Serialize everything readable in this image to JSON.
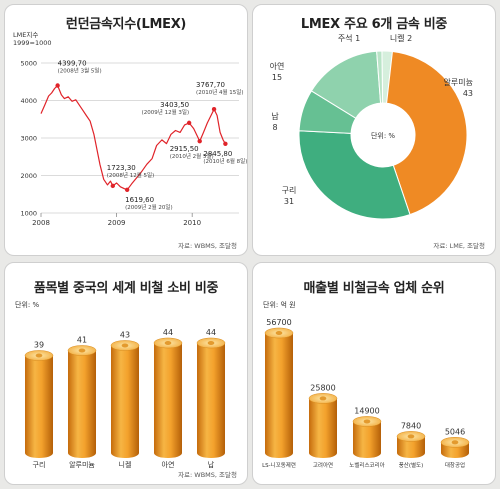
{
  "chart_data": [
    {
      "type": "line",
      "title": "런던금속지수(LMEX)",
      "ylabel": "LME지수\n1999=1000",
      "ylim": [
        1000,
        5000
      ],
      "yticks": [
        "5000",
        "4000",
        "3000",
        "2000",
        "1000"
      ],
      "xticks": [
        "2008",
        "2009",
        "2010"
      ],
      "series": [
        {
          "values": [
            [
              2008.0,
              3650
            ],
            [
              2008.05,
              3880
            ],
            [
              2008.1,
              4120
            ],
            [
              2008.14,
              4200
            ],
            [
              2008.18,
              4320
            ],
            [
              2008.22,
              4399.7
            ],
            [
              2008.27,
              4150
            ],
            [
              2008.31,
              4050
            ],
            [
              2008.36,
              4100
            ],
            [
              2008.41,
              3980
            ],
            [
              2008.46,
              4020
            ],
            [
              2008.5,
              3900
            ],
            [
              2008.55,
              3750
            ],
            [
              2008.6,
              3600
            ],
            [
              2008.65,
              3450
            ],
            [
              2008.7,
              3100
            ],
            [
              2008.74,
              2700
            ],
            [
              2008.78,
              2300
            ],
            [
              2008.83,
              1900
            ],
            [
              2008.88,
              1750
            ],
            [
              2008.92,
              1850
            ],
            [
              2008.95,
              1723.3
            ],
            [
              2009.0,
              1800
            ],
            [
              2009.05,
              1700
            ],
            [
              2009.1,
              1650
            ],
            [
              2009.14,
              1619.6
            ],
            [
              2009.2,
              1780
            ],
            [
              2009.27,
              1950
            ],
            [
              2009.33,
              2100
            ],
            [
              2009.4,
              2300
            ],
            [
              2009.47,
              2450
            ],
            [
              2009.53,
              2800
            ],
            [
              2009.6,
              2950
            ],
            [
              2009.66,
              2850
            ],
            [
              2009.72,
              3100
            ],
            [
              2009.78,
              3200
            ],
            [
              2009.84,
              3150
            ],
            [
              2009.9,
              3350
            ],
            [
              2009.96,
              3403.5
            ],
            [
              2010.02,
              3250
            ],
            [
              2010.08,
              3000
            ],
            [
              2010.1,
              2915.5
            ],
            [
              2010.15,
              3150
            ],
            [
              2010.2,
              3400
            ],
            [
              2010.25,
              3600
            ],
            [
              2010.29,
              3767.7
            ],
            [
              2010.33,
              3600
            ],
            [
              2010.37,
              3150
            ],
            [
              2010.41,
              2950
            ],
            [
              2010.44,
              2845.8
            ]
          ]
        }
      ],
      "annotations": [
        {
          "value": "4399,70",
          "date": "(2008년 3월 5일)"
        },
        {
          "value": "1723,30",
          "date": "(2008년 12월 5일)"
        },
        {
          "value": "1619,60",
          "date": "(2009년 2월 20일)"
        },
        {
          "value": "3403,50",
          "date": "(2009년 12월 3일)"
        },
        {
          "value": "2915,50",
          "date": "(2010년 2월 5일)"
        },
        {
          "value": "3767,70",
          "date": "(2010년 4월 15일)"
        },
        {
          "value": "2845,80",
          "date": "(2010년 6월 8일)"
        }
      ],
      "source": "자료: WBMS, 조달청",
      "line_color": "#e0242a"
    },
    {
      "type": "pie",
      "title": "LMEX 주요 6개 금속 비중",
      "center_label": "단위: %",
      "categories": [
        "알루미늄",
        "구리",
        "납",
        "아연",
        "주석",
        "니켈"
      ],
      "values": [
        43,
        31,
        8,
        15,
        1,
        2
      ],
      "colors": [
        "#ef8a24",
        "#3fae7f",
        "#66c093",
        "#8fd2ad",
        "#b9e4c7",
        "#d6efdd"
      ],
      "source": "자료: LME, 조달청"
    },
    {
      "type": "bar",
      "title": "품목별 중국의 세계 비철 소비 비중",
      "unit": "단위: %",
      "categories": [
        "구리",
        "알루미늄",
        "니켈",
        "아연",
        "납"
      ],
      "values": [
        39,
        41,
        43,
        44,
        44
      ],
      "value_labels": [
        "39",
        "41",
        "43",
        "44",
        "44"
      ],
      "source": "자료: WBMS, 조달청"
    },
    {
      "type": "bar",
      "title": "매출별 비철금속 업체 순위",
      "unit": "단위: 억 원",
      "categories": [
        "LS-니꼬동제련",
        "고려아연",
        "노벨리스코리아",
        "풍산(별도)",
        "대창공업"
      ],
      "values": [
        56700,
        25800,
        14900,
        7840,
        5046
      ],
      "value_labels": [
        "56700",
        "25800",
        "14900",
        "7840",
        "5046"
      ]
    }
  ]
}
